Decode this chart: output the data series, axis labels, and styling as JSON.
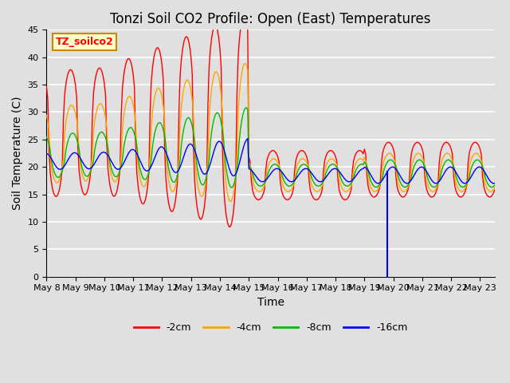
{
  "title": "Tonzi Soil CO2 Profile: Open (East) Temperatures",
  "xlabel": "Time",
  "ylabel": "Soil Temperature (C)",
  "ylim": [
    0,
    45
  ],
  "x_tick_labels": [
    "May 8",
    "May 9",
    "May 10",
    "May 11",
    "May 12",
    "May 13",
    "May 14",
    "May 15",
    "May 16",
    "May 17",
    "May 18",
    "May 19",
    "May 20",
    "May 21",
    "May 22",
    "May 23"
  ],
  "legend_labels": [
    "-2cm",
    "-4cm",
    "-8cm",
    "-16cm"
  ],
  "colors": [
    "#ff0000",
    "#ffa500",
    "#00bb00",
    "#0000ff"
  ],
  "annotation_text": "TZ_soilco2",
  "annotation_box_color": "#ffffcc",
  "annotation_box_edge": "#cc8800",
  "background_color": "#e0e0e0",
  "grid_color": "#ffffff",
  "title_fontsize": 12,
  "axis_label_fontsize": 10,
  "tick_fontsize": 8
}
